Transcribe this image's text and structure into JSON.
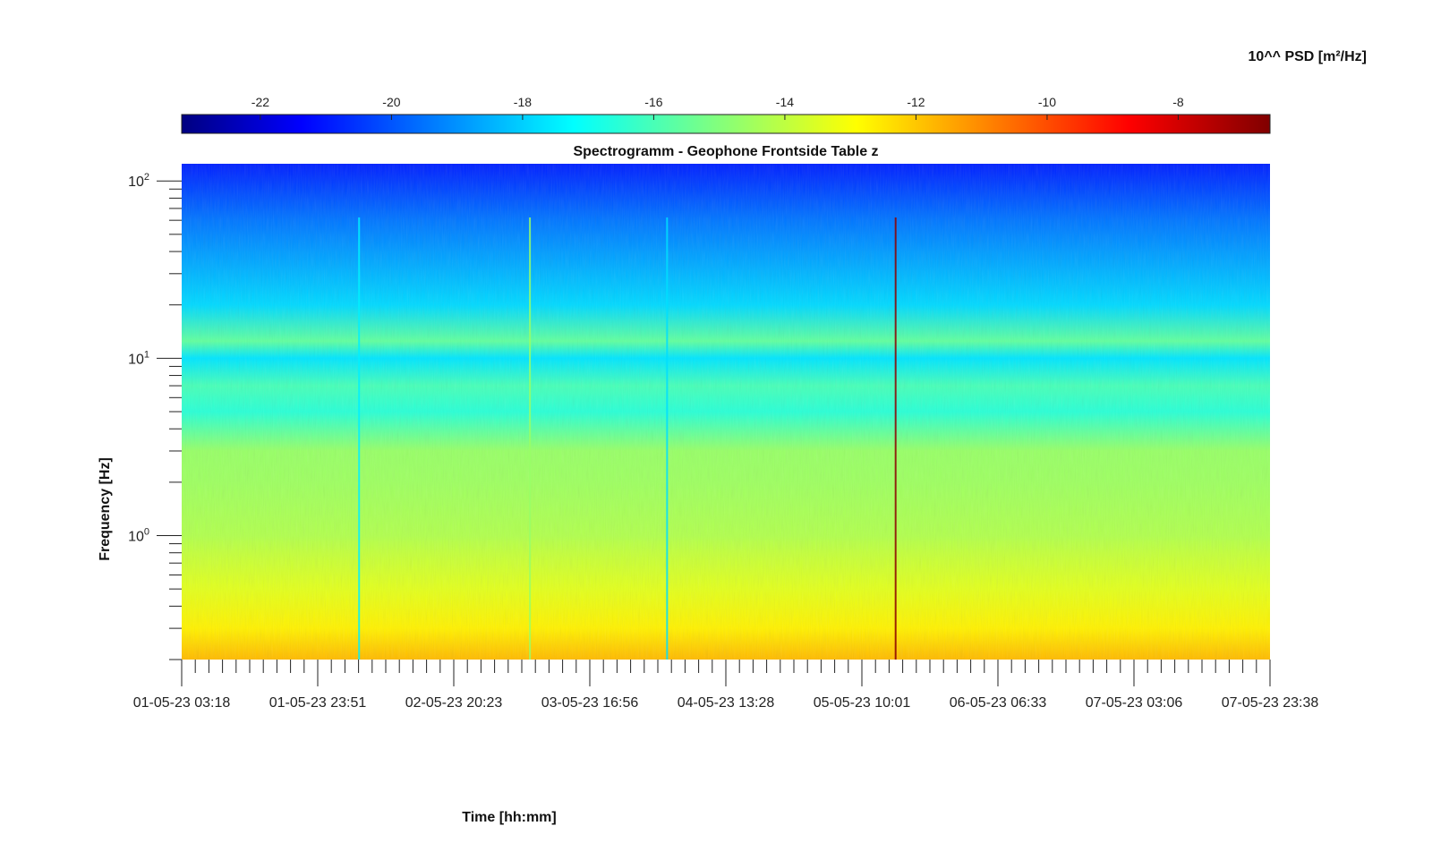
{
  "chart_data": {
    "type": "heatmap",
    "title": "Spectrogramm - Geophone Frontside Table z",
    "xlabel": "Time [hh:mm]",
    "ylabel": "Frequency [Hz]",
    "x_tick_labels": [
      "01-05-23 03:18",
      "01-05-23 23:51",
      "02-05-23 20:23",
      "03-05-23 16:56",
      "04-05-23 13:28",
      "05-05-23 10:01",
      "06-05-23 06:33",
      "07-05-23 03:06",
      "07-05-23 23:38"
    ],
    "y_scale": "log",
    "ylim": [
      0.2,
      125
    ],
    "y_tick_labels": [
      {
        "value": 1,
        "base": "10",
        "exp": "0"
      },
      {
        "value": 10,
        "base": "10",
        "exp": "1"
      },
      {
        "value": 100,
        "base": "10",
        "exp": "2"
      }
    ],
    "colorbar": {
      "label": "10^^ PSD [m²/Hz]",
      "range": [
        -23.2,
        -6.6
      ],
      "tick_labels": [
        "-22",
        "-20",
        "-18",
        "-16",
        "-14",
        "-12",
        "-10",
        "-8"
      ],
      "tick_values": [
        -22,
        -20,
        -18,
        -16,
        -14,
        -12,
        -10,
        -8
      ],
      "colormap": "jet"
    },
    "frequency_profile": [
      {
        "f": 0.2,
        "psd": -11.7
      },
      {
        "f": 0.3,
        "psd": -12.6
      },
      {
        "f": 0.5,
        "psd": -13.3
      },
      {
        "f": 0.8,
        "psd": -13.8
      },
      {
        "f": 1.0,
        "psd": -14.1
      },
      {
        "f": 2.0,
        "psd": -14.4
      },
      {
        "f": 3.0,
        "psd": -14.5
      },
      {
        "f": 5.0,
        "psd": -16.3
      },
      {
        "f": 7.0,
        "psd": -15.8
      },
      {
        "f": 10.0,
        "psd": -17.4
      },
      {
        "f": 12.5,
        "psd": -15.4
      },
      {
        "f": 20.0,
        "psd": -17.6
      },
      {
        "f": 40.0,
        "psd": -18.6
      },
      {
        "f": 60.0,
        "psd": -19.2
      },
      {
        "f": 100.0,
        "psd": -20.2
      },
      {
        "f": 125.0,
        "psd": -20.6
      }
    ],
    "events": [
      {
        "time_fraction": 0.163,
        "psd": -17.2
      },
      {
        "time_fraction": 0.32,
        "psd": -14.5
      },
      {
        "time_fraction": 0.446,
        "psd": -17.5
      },
      {
        "time_fraction": 0.656,
        "psd": -6.8
      }
    ]
  }
}
